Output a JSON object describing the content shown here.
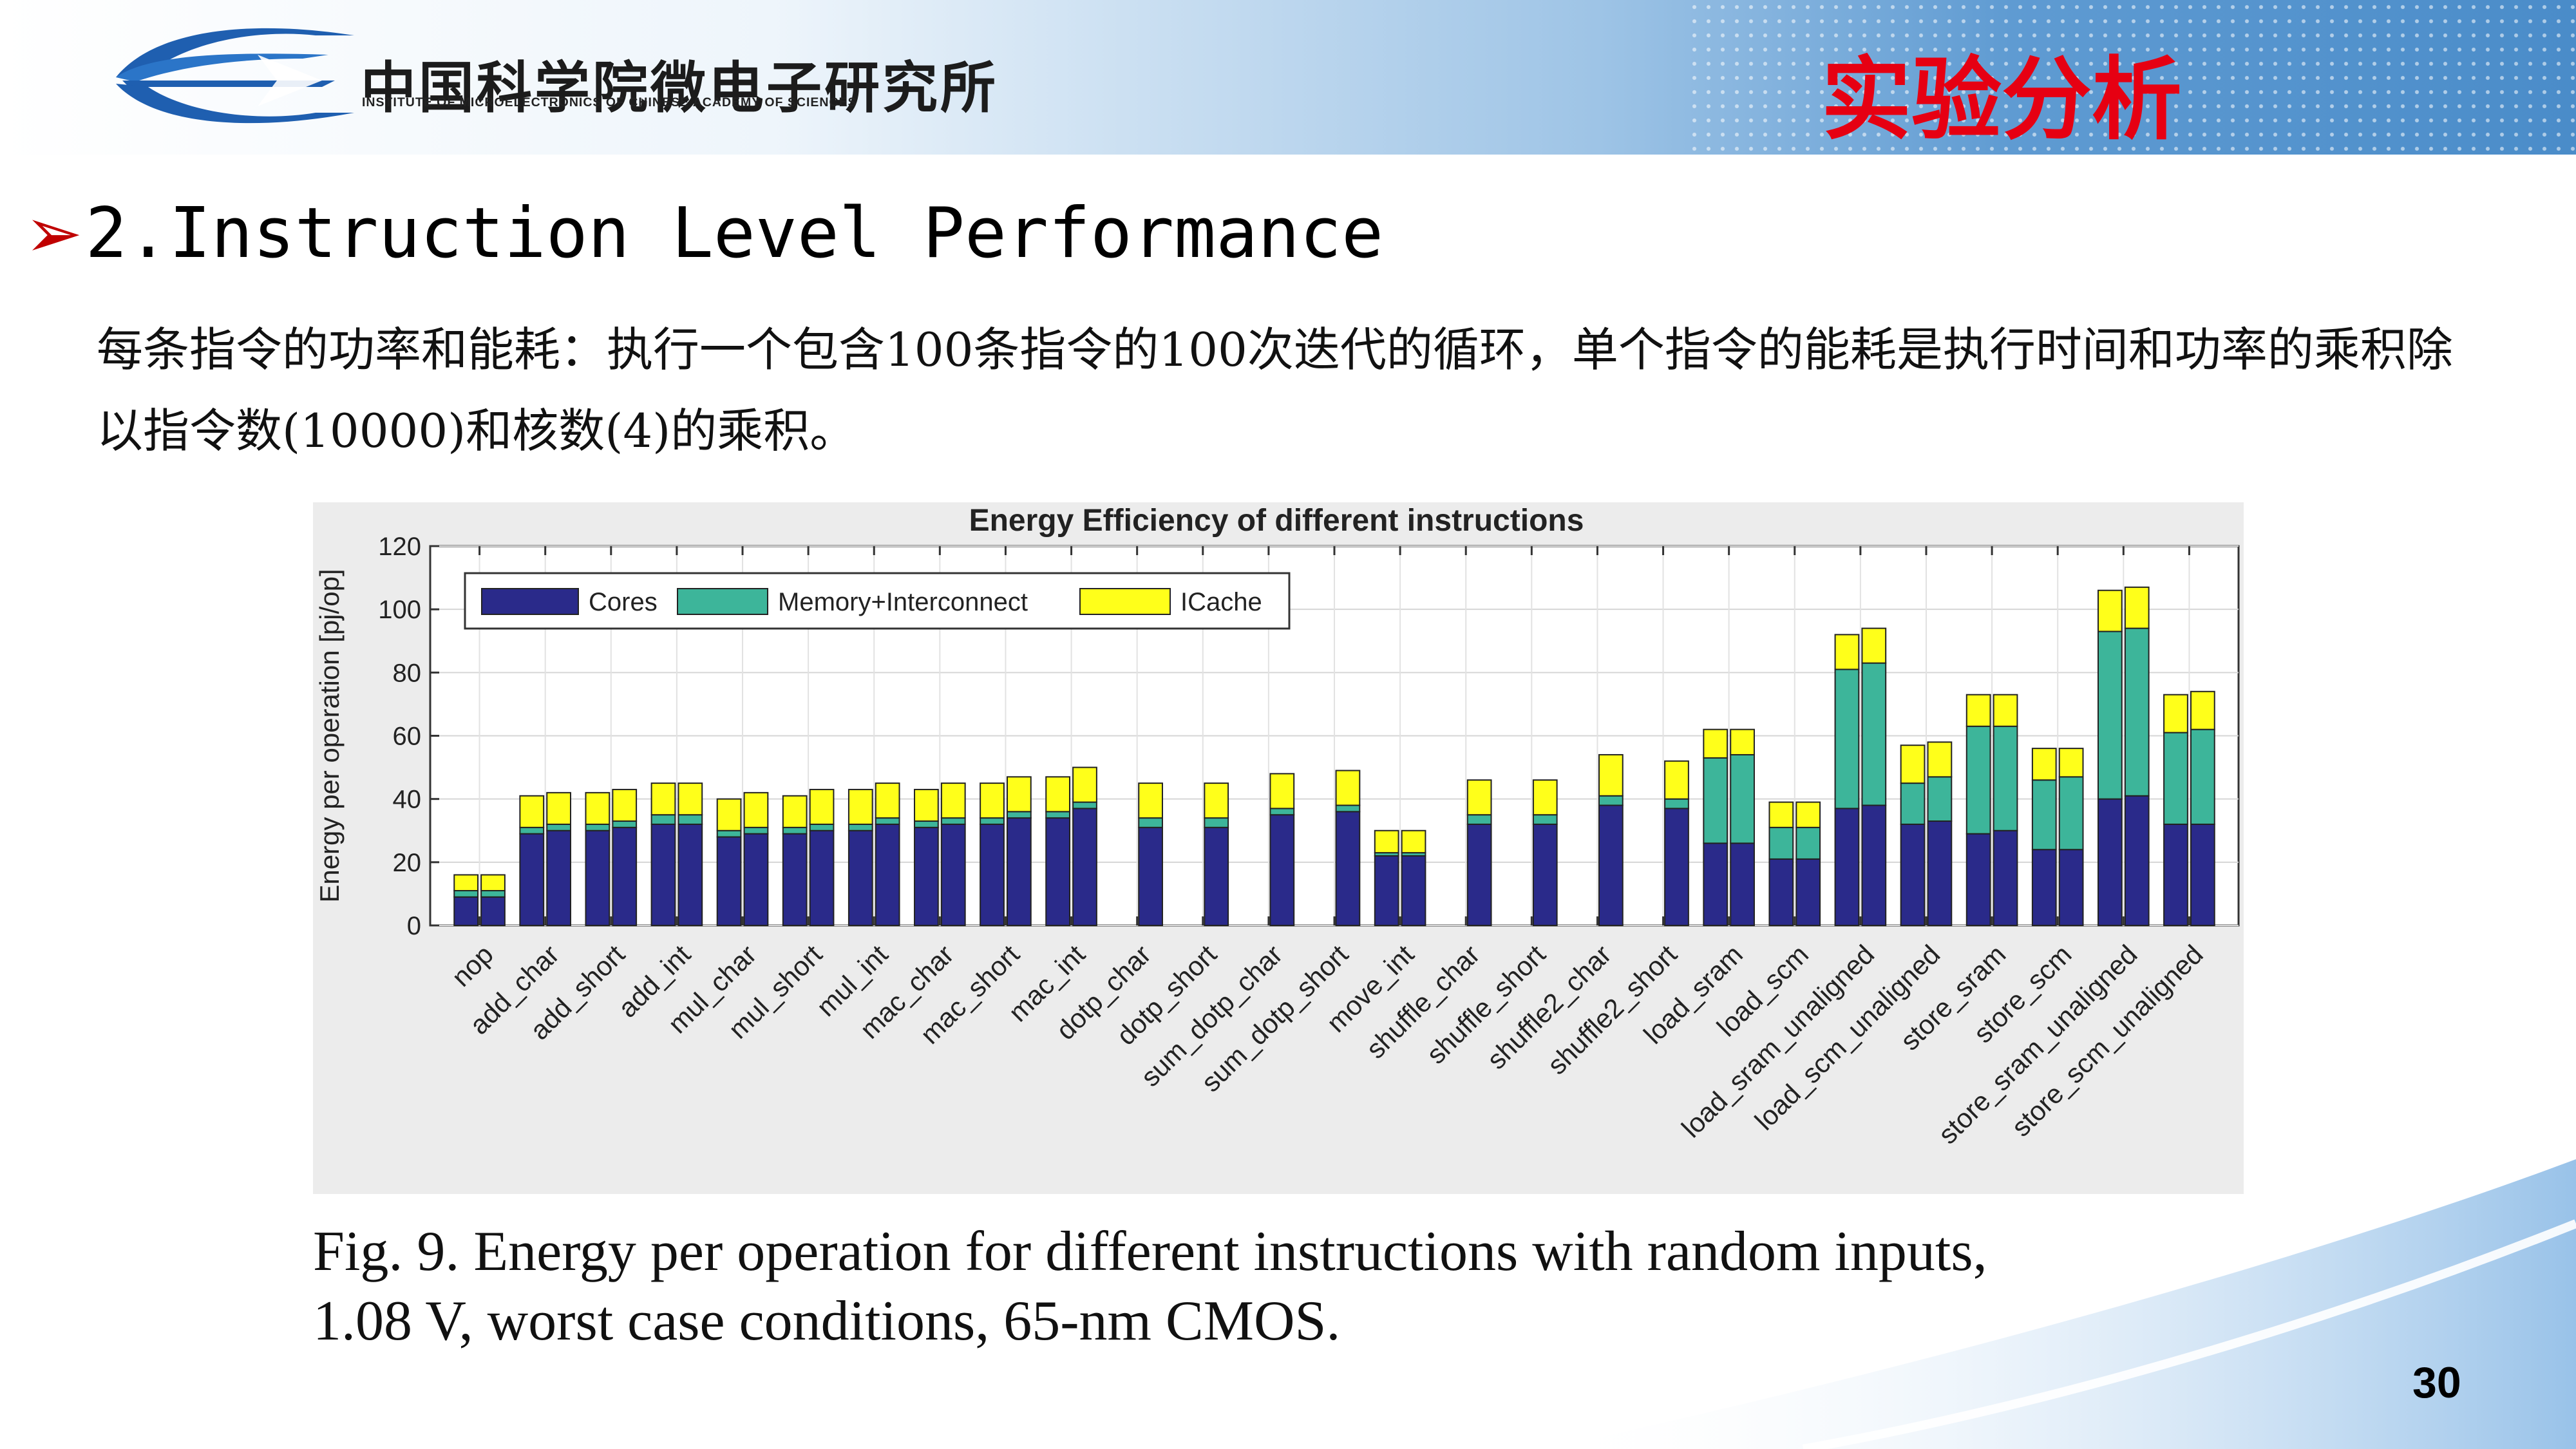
{
  "header": {
    "org_cn": "中国科学院微电子研究所",
    "org_en": "INSTITUTE OF MICROELECTRONICS OF CHINESE ACADEMY OF SCIENCES",
    "section_title": "实验分析"
  },
  "slide": {
    "heading": "2.Instruction Level Performance",
    "heading_icon": "arrow-bullet-icon",
    "description": "每条指令的功率和能耗：执行一个包含100条指令的100次迭代的循环，单个指令的能耗是执行时间和功率的乘积除以指令数(10000)和核数(4)的乘积。",
    "caption_line1": "Fig. 9.   Energy per operation for different instructions with random inputs,",
    "caption_line2": "1.08 V, worst case conditions, 65-nm CMOS.",
    "page_number": "30"
  },
  "colors": {
    "cores": "#2a2a8a",
    "memory": "#3db59a",
    "icache": "#ffff1a",
    "title_red": "#e60012"
  },
  "chart_data": {
    "type": "bar",
    "stacked": true,
    "title": "Energy Efficiency of different instructions",
    "xlabel": "",
    "ylabel": "Energy per operation [pj/op]",
    "ylim": [
      0,
      120
    ],
    "yticks": [
      0,
      20,
      40,
      60,
      80,
      100,
      120
    ],
    "grid": true,
    "legend_position": "top-left",
    "categories": [
      "nop",
      "add_char",
      "add_short",
      "add_int",
      "mul_char",
      "mul_short",
      "mul_int",
      "mac_char",
      "mac_short",
      "mac_int",
      "dotp_char",
      "dotp_short",
      "sum_dotp_char",
      "sum_dotp_short",
      "move_int",
      "shuffle_char",
      "shuffle_short",
      "shuffle2_char",
      "shuffle2_short",
      "load_sram",
      "load_scm",
      "load_sram_unaligned",
      "load_scm_unaligned",
      "store_sram",
      "store_scm",
      "store_sram_unaligned",
      "store_scm_unaligned"
    ],
    "series": [
      {
        "name": "Cores",
        "values": [
          [
            9,
            9
          ],
          [
            29,
            30
          ],
          [
            30,
            31
          ],
          [
            32,
            32
          ],
          [
            28,
            29
          ],
          [
            29,
            30
          ],
          [
            30,
            32
          ],
          [
            31,
            32
          ],
          [
            32,
            34
          ],
          [
            34,
            37
          ],
          [
            null,
            31
          ],
          [
            null,
            31
          ],
          [
            null,
            35
          ],
          [
            null,
            36
          ],
          [
            22,
            22
          ],
          [
            null,
            32
          ],
          [
            null,
            32
          ],
          [
            null,
            38
          ],
          [
            null,
            37
          ],
          [
            26,
            26
          ],
          [
            21,
            21
          ],
          [
            37,
            38
          ],
          [
            32,
            33
          ],
          [
            29,
            30
          ],
          [
            24,
            24
          ],
          [
            40,
            41
          ],
          [
            32,
            32
          ]
        ]
      },
      {
        "name": "Memory+Interconnect",
        "values": [
          [
            2,
            2
          ],
          [
            2,
            2
          ],
          [
            2,
            2
          ],
          [
            3,
            3
          ],
          [
            2,
            2
          ],
          [
            2,
            2
          ],
          [
            2,
            2
          ],
          [
            2,
            2
          ],
          [
            2,
            2
          ],
          [
            2,
            2
          ],
          [
            null,
            3
          ],
          [
            null,
            3
          ],
          [
            null,
            2
          ],
          [
            null,
            2
          ],
          [
            1,
            1
          ],
          [
            null,
            3
          ],
          [
            null,
            3
          ],
          [
            null,
            3
          ],
          [
            null,
            3
          ],
          [
            27,
            28
          ],
          [
            10,
            10
          ],
          [
            44,
            45
          ],
          [
            13,
            14
          ],
          [
            34,
            33
          ],
          [
            22,
            23
          ],
          [
            53,
            53
          ],
          [
            29,
            30
          ]
        ]
      },
      {
        "name": "ICache",
        "values": [
          [
            5,
            5
          ],
          [
            10,
            10
          ],
          [
            10,
            10
          ],
          [
            10,
            10
          ],
          [
            10,
            11
          ],
          [
            10,
            11
          ],
          [
            11,
            11
          ],
          [
            10,
            11
          ],
          [
            11,
            11
          ],
          [
            11,
            11
          ],
          [
            null,
            11
          ],
          [
            null,
            11
          ],
          [
            null,
            11
          ],
          [
            null,
            11
          ],
          [
            7,
            7
          ],
          [
            null,
            11
          ],
          [
            null,
            11
          ],
          [
            null,
            13
          ],
          [
            null,
            12
          ],
          [
            9,
            8
          ],
          [
            8,
            8
          ],
          [
            11,
            11
          ],
          [
            12,
            11
          ],
          [
            10,
            10
          ],
          [
            10,
            9
          ],
          [
            13,
            13
          ],
          [
            12,
            12
          ]
        ]
      }
    ]
  }
}
